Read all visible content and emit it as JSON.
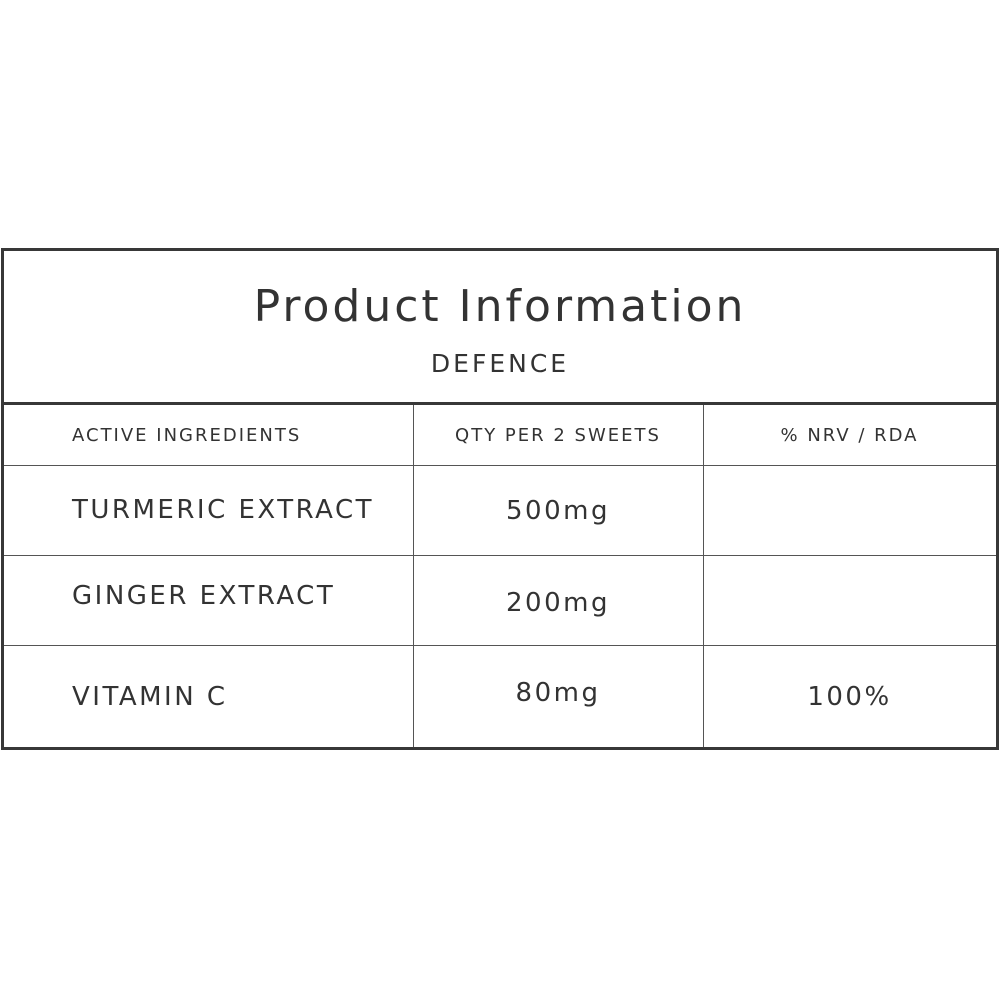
{
  "title": "Product Information",
  "subtitle": "DEFENCE",
  "columns": [
    "ACTIVE INGREDIENTS",
    "QTY PER 2 SWEETS",
    "% NRV / RDA"
  ],
  "rows": [
    {
      "ingredient": "TURMERIC EXTRACT",
      "qty": "500mg",
      "nrv": ""
    },
    {
      "ingredient": "GINGER EXTRACT",
      "qty": "200mg",
      "nrv": ""
    },
    {
      "ingredient": "VITAMIN C",
      "qty": "80mg",
      "nrv": "100%"
    }
  ]
}
